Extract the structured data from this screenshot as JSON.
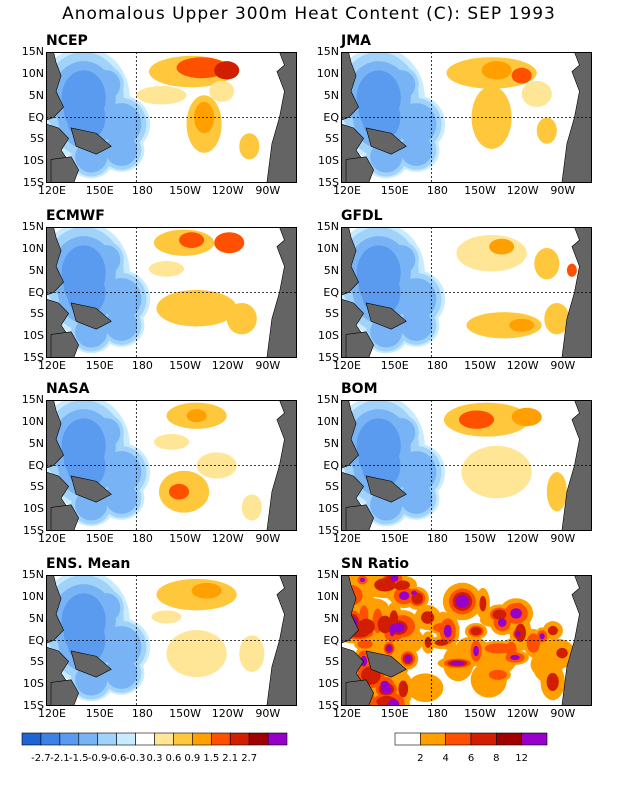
{
  "title": "Anomalous Upper 300m Heat Content (C): SEP 1993",
  "panels": [
    {
      "name": "NCEP"
    },
    {
      "name": "JMA"
    },
    {
      "name": "ECMWF"
    },
    {
      "name": "GFDL"
    },
    {
      "name": "NASA"
    },
    {
      "name": "BOM"
    },
    {
      "name": "ENS. Mean"
    },
    {
      "name": "SN Ratio"
    }
  ],
  "lat_labels": [
    "15N",
    "10N",
    "5N",
    "EQ",
    "5S",
    "10S",
    "15S"
  ],
  "lon_labels": [
    "120E",
    "150E",
    "180",
    "150W",
    "120W",
    "90W"
  ],
  "anomaly_colorbar": {
    "labels": [
      "-2.7",
      "-2.1",
      "-1.5",
      "-0.9",
      "-0.6",
      "-0.3",
      "0.3",
      "0.6",
      "0.9",
      "1.5",
      "2.1",
      "2.7"
    ],
    "colors": [
      "#1e64d2",
      "#3c82e6",
      "#5a9bf0",
      "#78b4f5",
      "#a0d2fa",
      "#c8ebff",
      "#ffffff",
      "#ffe696",
      "#ffc83c",
      "#ffa000",
      "#ff5000",
      "#d21e00",
      "#a00000",
      "#9600c8"
    ]
  },
  "snr_colorbar": {
    "labels": [
      "2",
      "4",
      "6",
      "8",
      "12"
    ],
    "colors": [
      "#ffffff",
      "#ffa000",
      "#ff5000",
      "#d21e00",
      "#a00000",
      "#9600c8"
    ]
  },
  "chart_data": {
    "type": "heatmap",
    "title": "Anomalous Upper 300m Heat Content (C): SEP 1993",
    "region": {
      "lon_range": [
        "120E",
        "80W"
      ],
      "lat_range": [
        "15S",
        "15N"
      ]
    },
    "panels": [
      "NCEP",
      "JMA",
      "ECMWF",
      "GFDL",
      "NASA",
      "BOM",
      "ENS. Mean",
      "SN Ratio"
    ],
    "pattern": "Negative anomalies (-0.3 to -1.5 C) over western Pacific 120E-180; positive anomalies (0.3 to 2.7 C) north of equator near 150W-120W; weaker positive anomalies south of equator 150W-120W"
  }
}
